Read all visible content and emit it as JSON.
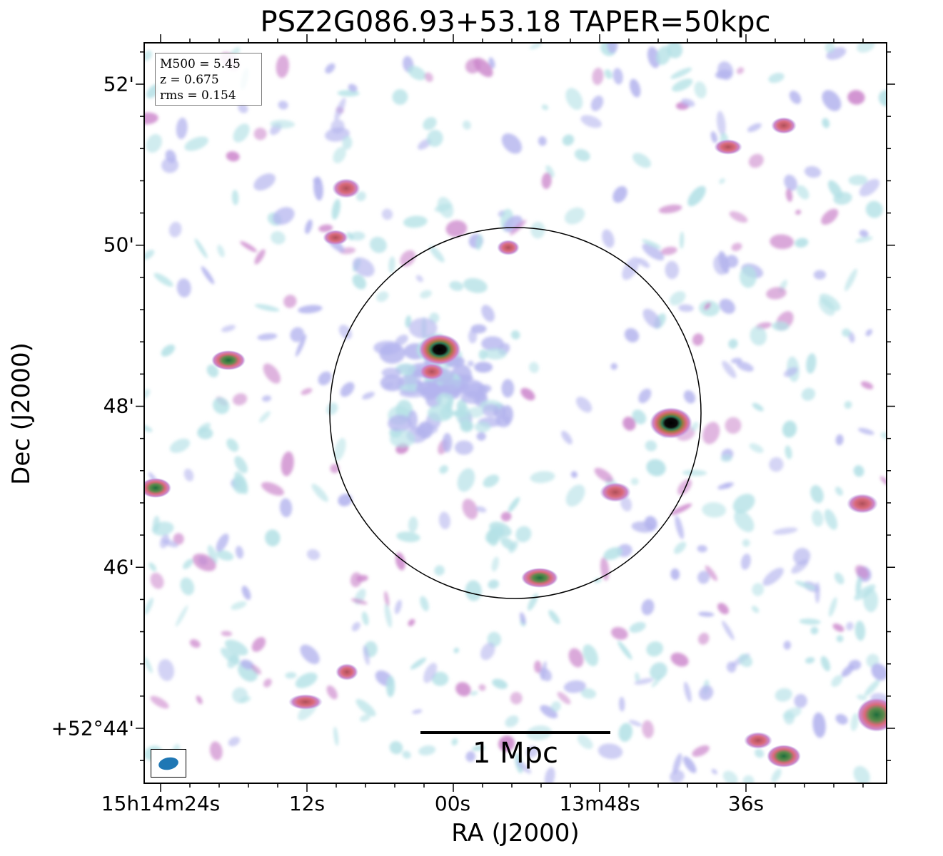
{
  "title": "PSZ2G086.93+53.18 TAPER=50kpc",
  "axes": {
    "xlabel": "RA (J2000)",
    "ylabel": "Dec (J2000)",
    "xticks": [
      "15h14m24s",
      "12s",
      "00s",
      "13m48s",
      "36s"
    ],
    "yticks": [
      "52'",
      "50'",
      "48'",
      "46'",
      "+52°44'"
    ]
  },
  "info_box": {
    "m500": "M500 = 5.45",
    "z": "z = 0.675",
    "rms": "rms = 0.154"
  },
  "scale_bar": {
    "label": "1 Mpc"
  },
  "beam": {
    "color": "#1f77b4"
  },
  "colors": {
    "faint": "#b4e1e6",
    "low": "#b4b4ee",
    "mid": "#cc88cc",
    "high": "#d96a7a",
    "peak": "#000000",
    "circle": "#000000"
  }
}
